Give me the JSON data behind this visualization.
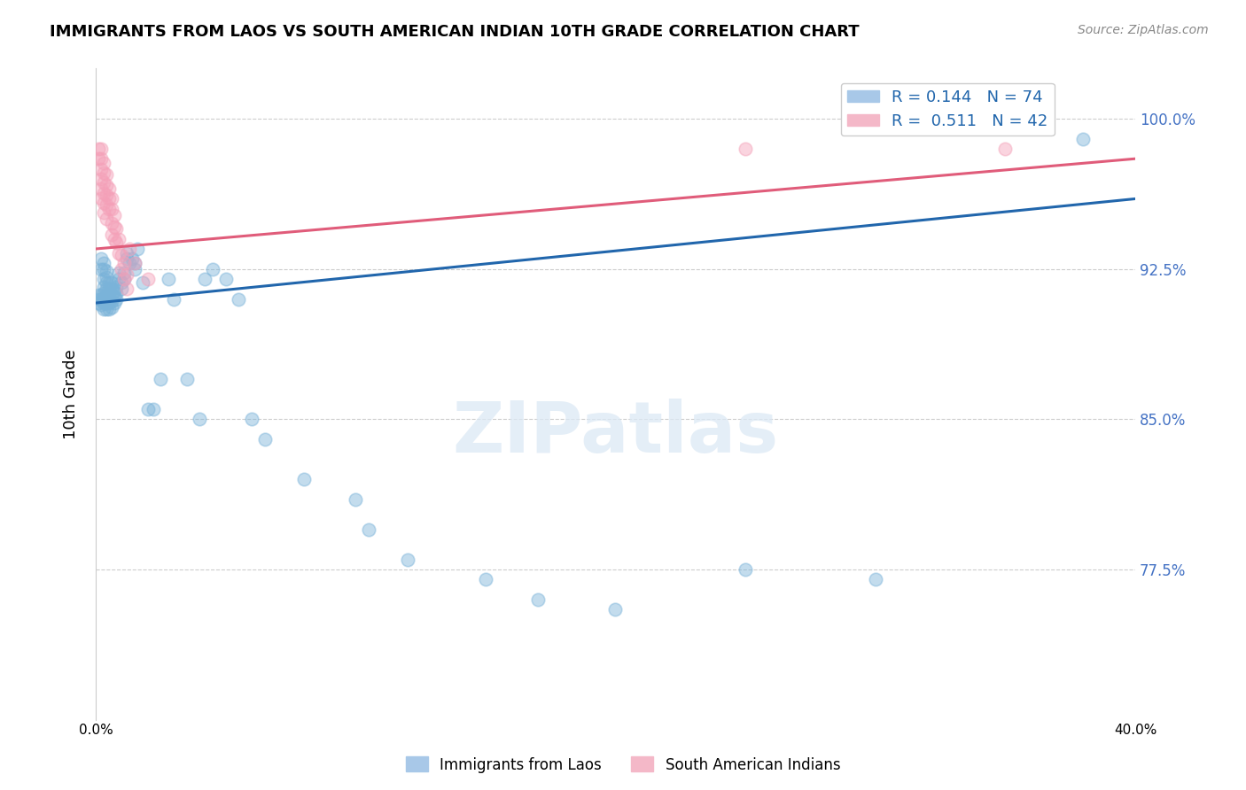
{
  "title": "IMMIGRANTS FROM LAOS VS SOUTH AMERICAN INDIAN 10TH GRADE CORRELATION CHART",
  "source": "Source: ZipAtlas.com",
  "ylabel": "10th Grade",
  "ytick_labels": [
    "100.0%",
    "92.5%",
    "85.0%",
    "77.5%"
  ],
  "ytick_values": [
    1.0,
    0.925,
    0.85,
    0.775
  ],
  "xlim": [
    0.0,
    0.4
  ],
  "ylim": [
    0.7,
    1.025
  ],
  "blue_color": "#7ab3d9",
  "pink_color": "#f4a0b8",
  "blue_line_color": "#2166ac",
  "pink_line_color": "#e05c7a",
  "watermark_text": "ZIPatlas",
  "blue_scatter": [
    [
      0.001,
      0.908
    ],
    [
      0.001,
      0.91
    ],
    [
      0.001,
      0.912
    ],
    [
      0.002,
      0.907
    ],
    [
      0.002,
      0.91
    ],
    [
      0.002,
      0.912
    ],
    [
      0.002,
      0.93
    ],
    [
      0.002,
      0.925
    ],
    [
      0.003,
      0.905
    ],
    [
      0.003,
      0.908
    ],
    [
      0.003,
      0.91
    ],
    [
      0.003,
      0.913
    ],
    [
      0.003,
      0.916
    ],
    [
      0.003,
      0.92
    ],
    [
      0.003,
      0.925
    ],
    [
      0.003,
      0.928
    ],
    [
      0.004,
      0.905
    ],
    [
      0.004,
      0.908
    ],
    [
      0.004,
      0.91
    ],
    [
      0.004,
      0.912
    ],
    [
      0.004,
      0.915
    ],
    [
      0.004,
      0.918
    ],
    [
      0.004,
      0.921
    ],
    [
      0.004,
      0.924
    ],
    [
      0.005,
      0.905
    ],
    [
      0.005,
      0.908
    ],
    [
      0.005,
      0.91
    ],
    [
      0.005,
      0.912
    ],
    [
      0.005,
      0.915
    ],
    [
      0.005,
      0.918
    ],
    [
      0.006,
      0.906
    ],
    [
      0.006,
      0.909
    ],
    [
      0.006,
      0.912
    ],
    [
      0.006,
      0.915
    ],
    [
      0.006,
      0.918
    ],
    [
      0.007,
      0.908
    ],
    [
      0.007,
      0.911
    ],
    [
      0.007,
      0.914
    ],
    [
      0.008,
      0.91
    ],
    [
      0.008,
      0.913
    ],
    [
      0.008,
      0.916
    ],
    [
      0.009,
      0.92
    ],
    [
      0.009,
      0.923
    ],
    [
      0.01,
      0.915
    ],
    [
      0.01,
      0.918
    ],
    [
      0.011,
      0.92
    ],
    [
      0.011,
      0.923
    ],
    [
      0.012,
      0.93
    ],
    [
      0.012,
      0.933
    ],
    [
      0.013,
      0.928
    ],
    [
      0.014,
      0.93
    ],
    [
      0.015,
      0.928
    ],
    [
      0.015,
      0.925
    ],
    [
      0.016,
      0.935
    ],
    [
      0.018,
      0.918
    ],
    [
      0.02,
      0.855
    ],
    [
      0.022,
      0.855
    ],
    [
      0.025,
      0.87
    ],
    [
      0.028,
      0.92
    ],
    [
      0.03,
      0.91
    ],
    [
      0.035,
      0.87
    ],
    [
      0.04,
      0.85
    ],
    [
      0.042,
      0.92
    ],
    [
      0.045,
      0.925
    ],
    [
      0.05,
      0.92
    ],
    [
      0.055,
      0.91
    ],
    [
      0.06,
      0.85
    ],
    [
      0.065,
      0.84
    ],
    [
      0.08,
      0.82
    ],
    [
      0.1,
      0.81
    ],
    [
      0.105,
      0.795
    ],
    [
      0.12,
      0.78
    ],
    [
      0.15,
      0.77
    ],
    [
      0.17,
      0.76
    ],
    [
      0.2,
      0.755
    ],
    [
      0.25,
      0.775
    ],
    [
      0.3,
      0.77
    ],
    [
      0.38,
      0.99
    ]
  ],
  "pink_scatter": [
    [
      0.001,
      0.985
    ],
    [
      0.001,
      0.98
    ],
    [
      0.002,
      0.985
    ],
    [
      0.002,
      0.98
    ],
    [
      0.002,
      0.975
    ],
    [
      0.002,
      0.97
    ],
    [
      0.002,
      0.965
    ],
    [
      0.002,
      0.96
    ],
    [
      0.003,
      0.978
    ],
    [
      0.003,
      0.973
    ],
    [
      0.003,
      0.968
    ],
    [
      0.003,
      0.963
    ],
    [
      0.003,
      0.958
    ],
    [
      0.003,
      0.953
    ],
    [
      0.004,
      0.972
    ],
    [
      0.004,
      0.967
    ],
    [
      0.004,
      0.962
    ],
    [
      0.004,
      0.957
    ],
    [
      0.004,
      0.95
    ],
    [
      0.005,
      0.965
    ],
    [
      0.005,
      0.96
    ],
    [
      0.005,
      0.955
    ],
    [
      0.006,
      0.96
    ],
    [
      0.006,
      0.955
    ],
    [
      0.006,
      0.948
    ],
    [
      0.006,
      0.942
    ],
    [
      0.007,
      0.952
    ],
    [
      0.007,
      0.946
    ],
    [
      0.007,
      0.94
    ],
    [
      0.008,
      0.945
    ],
    [
      0.008,
      0.938
    ],
    [
      0.009,
      0.94
    ],
    [
      0.009,
      0.933
    ],
    [
      0.01,
      0.932
    ],
    [
      0.01,
      0.925
    ],
    [
      0.011,
      0.928
    ],
    [
      0.011,
      0.92
    ],
    [
      0.012,
      0.922
    ],
    [
      0.012,
      0.915
    ],
    [
      0.013,
      0.935
    ],
    [
      0.015,
      0.928
    ],
    [
      0.02,
      0.92
    ],
    [
      0.25,
      0.985
    ],
    [
      0.35,
      0.985
    ]
  ],
  "blue_line": {
    "x0": 0.0,
    "y0": 0.908,
    "x1": 0.4,
    "y1": 0.96
  },
  "pink_line": {
    "x0": 0.0,
    "y0": 0.935,
    "x1": 0.4,
    "y1": 0.98
  }
}
